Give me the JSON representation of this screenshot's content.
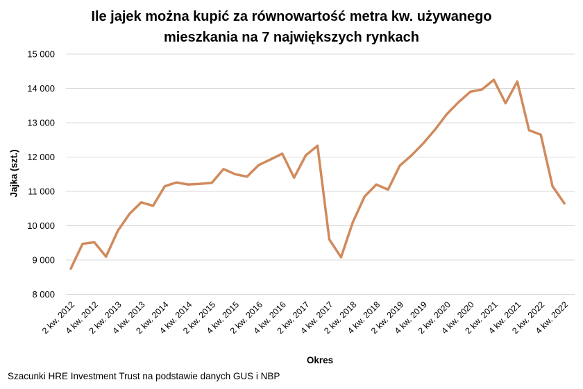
{
  "page": {
    "title_line1": "Ile jajek można kupić za równowartość metra kw. używanego",
    "title_line2": "mieszkania na 7 największych rynkach",
    "source_note": "Szacunki HRE Investment Trust na podstawie danych GUS i NBP"
  },
  "chart_data": {
    "type": "line",
    "title": "Ile jajek można kupić za równowartość metra kw. używanego mieszkania na 7 największych rynkach",
    "xlabel": "Okres",
    "ylabel": "Jajka (szt.)",
    "ylim": [
      8000,
      15000
    ],
    "y_ticks": [
      8000,
      9000,
      10000,
      11000,
      12000,
      13000,
      14000,
      15000
    ],
    "y_tick_labels": [
      "8 000",
      "9 000",
      "10 000",
      "11 000",
      "12 000",
      "13 000",
      "14 000",
      "15 000"
    ],
    "grid": "horizontal",
    "legend": "none",
    "x_tick_labels": [
      "2 kw. 2012",
      "4 kw. 2012",
      "2 kw. 2013",
      "4 kw. 2013",
      "2 kw. 2014",
      "4 kw. 2014",
      "2 kw. 2015",
      "4 kw. 2015",
      "2 kw. 2016",
      "4 kw. 2016",
      "2 kw. 2017",
      "4 kw. 2017",
      "2 kw. 2018",
      "4 kw. 2018",
      "2 kw. 2019",
      "4 kw. 2019",
      "2 kw. 2020",
      "4 kw. 2020",
      "2 kw. 2021",
      "4 kw. 2021",
      "2 kw. 2022",
      "4 kw. 2022"
    ],
    "x_tick_every": 2,
    "x": [
      "2 kw. 2012",
      "3 kw. 2012",
      "4 kw. 2012",
      "1 kw. 2013",
      "2 kw. 2013",
      "3 kw. 2013",
      "4 kw. 2013",
      "1 kw. 2014",
      "2 kw. 2014",
      "3 kw. 2014",
      "4 kw. 2014",
      "1 kw. 2015",
      "2 kw. 2015",
      "3 kw. 2015",
      "4 kw. 2015",
      "1 kw. 2016",
      "2 kw. 2016",
      "3 kw. 2016",
      "4 kw. 2016",
      "1 kw. 2017",
      "2 kw. 2017",
      "3 kw. 2017",
      "4 kw. 2017",
      "1 kw. 2018",
      "2 kw. 2018",
      "3 kw. 2018",
      "4 kw. 2018",
      "1 kw. 2019",
      "2 kw. 2019",
      "3 kw. 2019",
      "4 kw. 2019",
      "1 kw. 2020",
      "2 kw. 2020",
      "3 kw. 2020",
      "4 kw. 2020",
      "1 kw. 2021",
      "2 kw. 2021",
      "3 kw. 2021",
      "4 kw. 2021",
      "1 kw. 2022",
      "2 kw. 2022",
      "3 kw. 2022",
      "4 kw. 2022"
    ],
    "series": [
      {
        "name": "Jajka (szt.)",
        "color": "#D08A5C",
        "values": [
          8750,
          9470,
          9520,
          9100,
          9850,
          10350,
          10680,
          10580,
          11150,
          11260,
          11200,
          11220,
          11250,
          11650,
          11500,
          11430,
          11770,
          11930,
          12100,
          11400,
          12050,
          12330,
          9600,
          9080,
          10100,
          10850,
          11200,
          11050,
          11750,
          12050,
          12400,
          12800,
          13250,
          13600,
          13900,
          13970,
          14250,
          13570,
          14200,
          12780,
          12650,
          11150,
          10650
        ]
      }
    ],
    "gridline_color": "#D9D9D9"
  }
}
